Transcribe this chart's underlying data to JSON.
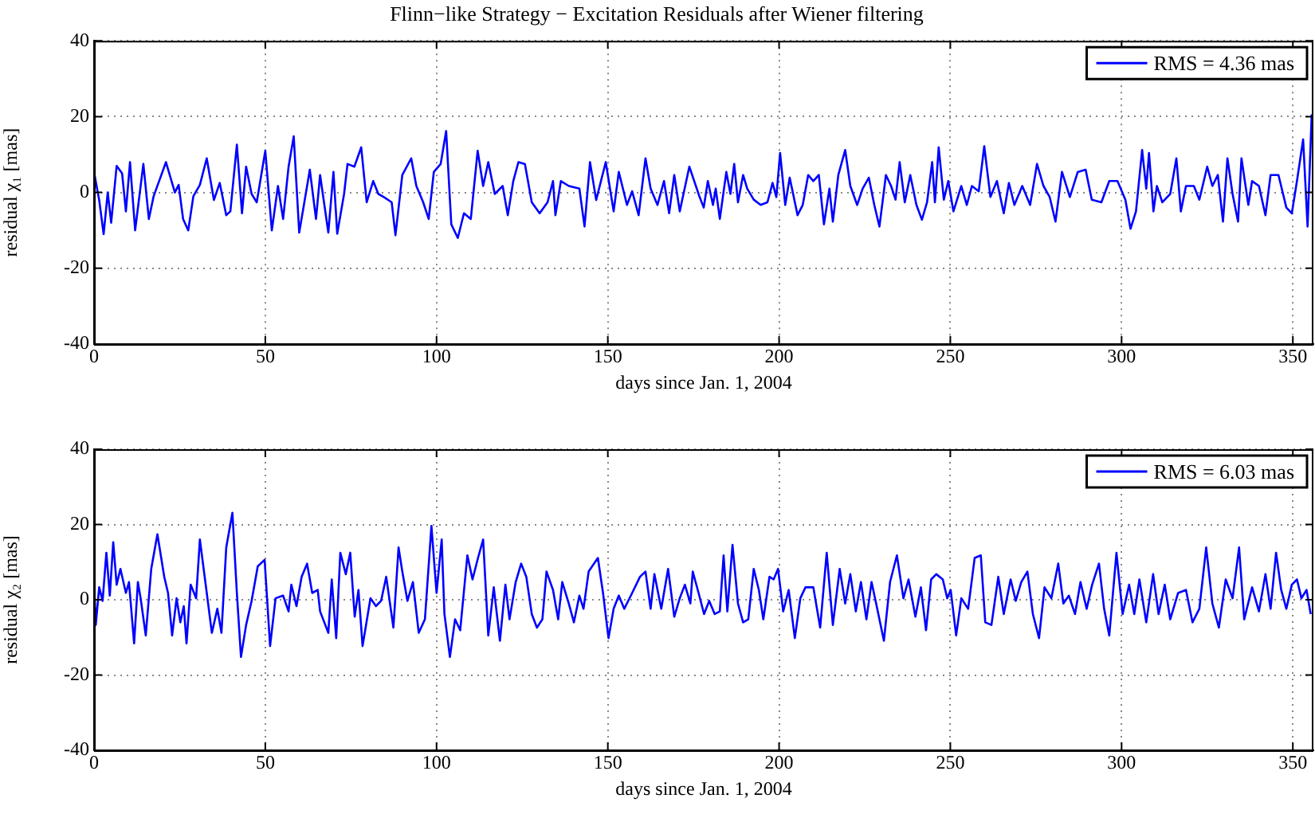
{
  "chart_data": [
    {
      "type": "line",
      "title": "Flinn−like Strategy − Excitation Residuals after Wiener filtering",
      "xlabel": "days since Jan. 1, 2004",
      "ylabel": "residual χ₁ [mas]",
      "xlim": [
        0,
        356
      ],
      "xticks": [
        0,
        50,
        100,
        150,
        200,
        250,
        300,
        350
      ],
      "ylim": [
        -40,
        40
      ],
      "yticks": [
        -40,
        -20,
        0,
        20,
        40
      ],
      "grid": true,
      "legend": "top right",
      "x": [
        0,
        1.5,
        2.8,
        4,
        5,
        6.6,
        8.2,
        9.3,
        10.5,
        12,
        14.4,
        16,
        17.4,
        19,
        21,
        23.6,
        24.7,
        26,
        27.5,
        29,
        30.9,
        32.9,
        35,
        36.7,
        38.6,
        39.8,
        41.7,
        43.2,
        44.4,
        46,
        47.5,
        50,
        51.9,
        53.7,
        55.2,
        56.8,
        58.3,
        59.9,
        61.4,
        63,
        64.8,
        66,
        68.4,
        69.9,
        71,
        73,
        74,
        76,
        78,
        79.6,
        81.5,
        83,
        84.6,
        86.9,
        88,
        90,
        92.6,
        94.1,
        96.1,
        97.7,
        99.2,
        101.2,
        102.8,
        104.3,
        106.2,
        108,
        110,
        112,
        113.6,
        115.1,
        117,
        119.3,
        120.8,
        122.4,
        123.9,
        125.8,
        127.8,
        130.1,
        132.4,
        134,
        134.7,
        136.3,
        138.6,
        141.7,
        143.2,
        144.8,
        146.6,
        149.4,
        151.7,
        153.2,
        155.6,
        157.1,
        159,
        161,
        162.5,
        164.5,
        166.4,
        167.9,
        169.4,
        171,
        173.8,
        176.8,
        178,
        179.2,
        180.7,
        181.5,
        182.7,
        184.6,
        185.8,
        186.9,
        188,
        189.5,
        190.7,
        192.6,
        194.6,
        196.6,
        198.1,
        199.2,
        200.3,
        201.8,
        203.1,
        205.4,
        206.9,
        208.5,
        210,
        211.6,
        213.1,
        214.7,
        215.7,
        217.3,
        219.3,
        220.8,
        222.8,
        224.4,
        226.2,
        227.8,
        229.3,
        231.2,
        232.7,
        234,
        235.2,
        236.7,
        238.3,
        240.1,
        241.7,
        243.2,
        244.7,
        245.5,
        246.6,
        248.1,
        249.4,
        250.9,
        253.2,
        254.8,
        256.3,
        258.3,
        259.9,
        261.7,
        263.6,
        265.6,
        267.1,
        268.7,
        271,
        273.3,
        275.3,
        277.2,
        279,
        280.7,
        282.6,
        284.9,
        287.2,
        289.5,
        291.3,
        294.1,
        296.4,
        298.8,
        301.1,
        302.6,
        304.2,
        306,
        307.2,
        308,
        309.3,
        310.3,
        311.9,
        314.2,
        316,
        317.3,
        318.8,
        321.1,
        322.7,
        325,
        326.5,
        328.1,
        329.6,
        330.9,
        332.4,
        334,
        335,
        337,
        338.1,
        340.1,
        342,
        343.5,
        345.8,
        348.1,
        349.7,
        351.2,
        353,
        354.3,
        355.5
      ],
      "series": [
        {
          "name": "RMS = 4.36 mas",
          "color": "#0000ff",
          "values": [
            5.4,
            -2,
            -11,
            0,
            -8,
            7,
            5,
            -5,
            8,
            -10,
            7.5,
            -7,
            -1,
            3,
            8,
            0,
            2,
            -7,
            -10,
            -1,
            2,
            9,
            -2,
            2.5,
            -6,
            -5,
            12.6,
            -5.5,
            6.8,
            -0.4,
            -2.6,
            11,
            -10,
            1.7,
            -7,
            6.8,
            14.8,
            -10.6,
            -2.6,
            6,
            -7,
            4.6,
            -10.6,
            5.4,
            -10.9,
            -0.4,
            7.5,
            6.8,
            11.9,
            -2.6,
            3,
            -0.4,
            -1.2,
            -2.6,
            -11.3,
            4.6,
            9,
            1.7,
            -2.6,
            -7,
            5.4,
            7.5,
            16.2,
            -8.4,
            -12,
            -5.5,
            -7,
            11,
            1.7,
            8,
            -0.4,
            1.7,
            -6,
            3,
            8,
            7.5,
            -2.6,
            -5.5,
            -2.6,
            3,
            -6,
            3,
            1.7,
            1,
            -9,
            8,
            -2,
            8,
            -5,
            5.4,
            -3.3,
            0.3,
            -6,
            9,
            1,
            -3.3,
            3,
            -5.5,
            4.6,
            -5,
            6.8,
            -1.2,
            -4,
            3,
            -3.3,
            1,
            -7,
            5.4,
            -0.4,
            7.5,
            -2.6,
            4.6,
            1,
            -1.9,
            -3.3,
            -2.6,
            2.5,
            -1.2,
            10.4,
            -3.3,
            3.9,
            -6,
            -3.3,
            4.6,
            3,
            4.6,
            -8.4,
            1,
            -7.7,
            4.6,
            11.2,
            1.7,
            -3.3,
            1,
            3.9,
            -3.3,
            -9,
            4.6,
            1.7,
            -1.9,
            8,
            -2.6,
            4.6,
            -3.3,
            -7.2,
            -2.6,
            8,
            -2.6,
            11.9,
            -1.9,
            3,
            -5,
            1.7,
            -3.3,
            1.7,
            0.3,
            12.2,
            -1.2,
            3,
            -5.5,
            2.5,
            -3.3,
            1.7,
            -3.3,
            7.5,
            1.7,
            -1.2,
            -7.7,
            5.4,
            -1.2,
            5.4,
            6,
            -1.9,
            -2.6,
            3,
            3,
            -1.9,
            -9.6,
            -5,
            11.2,
            1,
            10.4,
            -5,
            1.7,
            -2.6,
            -0.4,
            9,
            -5,
            1.7,
            1.7,
            -1.9,
            6.8,
            1.7,
            4.6,
            -7.7,
            9,
            -0.4,
            -7.7,
            9,
            -3.3,
            3,
            1.7,
            -6,
            4.6,
            4.6,
            -4,
            -5.5,
            3,
            14,
            -9,
            20.6
          ]
        }
      ]
    },
    {
      "type": "line",
      "xlabel": "days since Jan. 1, 2004",
      "ylabel": "residual χ₂ [mas]",
      "xlim": [
        0,
        356
      ],
      "xticks": [
        0,
        50,
        100,
        150,
        200,
        250,
        300,
        350
      ],
      "ylim": [
        -40,
        40
      ],
      "yticks": [
        -40,
        -20,
        0,
        20,
        40
      ],
      "grid": true,
      "legend": "top right",
      "x": [
        0,
        0.5,
        1.5,
        2.5,
        3.6,
        4.6,
        5.6,
        6.6,
        7.7,
        9.3,
        10.2,
        11.7,
        12.8,
        13.6,
        15.1,
        16.7,
        18.5,
        20.5,
        21.6,
        22.8,
        24.1,
        25.2,
        26.2,
        27,
        28.2,
        29.8,
        30.9,
        32.4,
        34.4,
        36,
        37.2,
        38.6,
        40.4,
        41.7,
        42.9,
        44.4,
        46,
        47.8,
        49.8,
        51.4,
        53,
        55.2,
        56.8,
        57.6,
        59.1,
        60.6,
        62.2,
        63.7,
        65.3,
        66,
        68.4,
        69.4,
        70.7,
        71.9,
        73.5,
        74.8,
        76.1,
        77.2,
        78.4,
        80.7,
        82.3,
        83.8,
        85.3,
        87.4,
        88.9,
        90,
        91.5,
        93.1,
        94.8,
        96.6,
        98.5,
        100,
        101.5,
        102.3,
        103.9,
        105.4,
        106.9,
        109,
        110.5,
        112.1,
        113.6,
        115.1,
        116.7,
        118.5,
        120.1,
        121.3,
        123.1,
        124.7,
        126.2,
        127.8,
        129.3,
        130.9,
        132.1,
        134,
        135.5,
        136.7,
        138.6,
        140.1,
        141.7,
        142.9,
        144.4,
        147.1,
        148.6,
        150.2,
        151.7,
        153.2,
        154.8,
        157.1,
        159.4,
        161,
        162.5,
        163.6,
        165.6,
        167.6,
        169.4,
        171,
        172.5,
        174.1,
        174.8,
        176.5,
        178.1,
        179.6,
        181.2,
        182.7,
        183.8,
        184.9,
        186.4,
        188,
        189.5,
        191,
        192.6,
        194.1,
        195.4,
        197.2,
        198.4,
        199.7,
        201.2,
        202.8,
        204.6,
        206.2,
        207.7,
        210,
        212,
        213.9,
        215.7,
        217.7,
        219.3,
        220.8,
        222.4,
        223.9,
        225.5,
        227,
        228.5,
        230.6,
        232.4,
        234.4,
        236.3,
        237.8,
        239.8,
        241.4,
        242.9,
        244.4,
        245.9,
        247.8,
        249.1,
        250.1,
        251.7,
        253.2,
        255.2,
        257.1,
        258.9,
        260.2,
        262,
        264,
        265.6,
        267.6,
        269.1,
        270.7,
        272.5,
        274.1,
        275.9,
        277.5,
        279.5,
        281.5,
        283,
        284.6,
        286.4,
        288,
        289.8,
        291.4,
        293.4,
        294.9,
        296.4,
        298.5,
        300.3,
        302.2,
        303.7,
        305.2,
        307.2,
        309.2,
        310.8,
        312.6,
        314.2,
        316.5,
        318.8,
        320.7,
        322.7,
        324.7,
        326.5,
        328.4,
        330.4,
        332.4,
        334.3,
        335.8,
        338.1,
        340.1,
        342,
        343.5,
        345.1,
        346.6,
        348.1,
        349.7,
        351.2,
        352.5,
        354,
        355.2
      ],
      "series": [
        {
          "name": "RMS = 6.03 mas",
          "color": "#0000ff",
          "values": [
            4.7,
            -6.7,
            3.3,
            -0.3,
            12.5,
            1.1,
            15.3,
            4,
            8.2,
            1.8,
            4.7,
            -11.6,
            4.7,
            0.4,
            -9.5,
            8.2,
            17.4,
            6.1,
            1.8,
            -9.5,
            0.4,
            -6,
            -1.7,
            -11.6,
            4,
            0.4,
            16,
            5.4,
            -8.8,
            -2.4,
            -8.8,
            13.9,
            23.1,
            1.8,
            -15.2,
            -6.7,
            -0.3,
            8.9,
            10.6,
            -12.3,
            0.4,
            1.1,
            -3.1,
            4,
            -1.7,
            6.1,
            9.6,
            1.8,
            2.6,
            -3.1,
            -8.8,
            5.4,
            -10.2,
            12.5,
            6.8,
            12.5,
            -4.5,
            2.6,
            -12.3,
            0.4,
            -1.7,
            -0.3,
            6.1,
            -7.4,
            13.9,
            7.5,
            -0.3,
            4.7,
            -8.8,
            -5.2,
            19.6,
            1.8,
            16,
            -3.8,
            -15.2,
            -5.2,
            -8.1,
            11.8,
            5.4,
            11.1,
            16,
            -9.5,
            3.3,
            -10.9,
            4,
            -5.2,
            4.7,
            9.6,
            6.1,
            -3.8,
            -7.4,
            -5.2,
            7.5,
            2.6,
            -5.2,
            4.7,
            -1,
            -6,
            1.1,
            -2.4,
            7.5,
            11.1,
            1.8,
            -10.2,
            -2.4,
            1.1,
            -2.4,
            1.8,
            6.1,
            7.5,
            -2.4,
            6.8,
            -2.4,
            8.2,
            -4.5,
            0.4,
            4,
            -1,
            7.5,
            1.8,
            -3.8,
            -0.3,
            -3.8,
            -3.1,
            11.8,
            -3.1,
            14.6,
            -1,
            -6,
            -5.2,
            8.2,
            2.6,
            -5.2,
            6.1,
            5.4,
            8.2,
            -3.1,
            2.6,
            -10.2,
            0.4,
            3.3,
            3.3,
            -7.4,
            12.5,
            -6.7,
            8.2,
            -1,
            6.8,
            -3.1,
            4.7,
            -5.2,
            4.7,
            -1.7,
            -10.9,
            4.7,
            11.8,
            0.4,
            5.4,
            -4.5,
            3.3,
            -8.1,
            5.4,
            6.8,
            5.4,
            0.4,
            2.6,
            -9.5,
            0.4,
            -2.4,
            11.1,
            11.8,
            -6,
            -6.7,
            6.1,
            -3.8,
            5.4,
            -0.3,
            4.7,
            7.5,
            -3.8,
            -10.2,
            3.3,
            0.4,
            9.6,
            -1,
            1.1,
            -3.8,
            4.7,
            -2.4,
            4,
            9.6,
            -2.4,
            -9.5,
            12.5,
            -3.8,
            4,
            -3.8,
            5.4,
            -6,
            6.8,
            -3.8,
            4,
            -5.2,
            1.8,
            2.6,
            -6,
            -2.4,
            13.9,
            -1,
            -7.4,
            5.4,
            0.4,
            13.9,
            -5.2,
            3.3,
            -3.1,
            6.8,
            -2.4,
            12.5,
            2.6,
            -2.4,
            4,
            5.4,
            0.4,
            2.6,
            -3.8
          ]
        }
      ]
    }
  ]
}
